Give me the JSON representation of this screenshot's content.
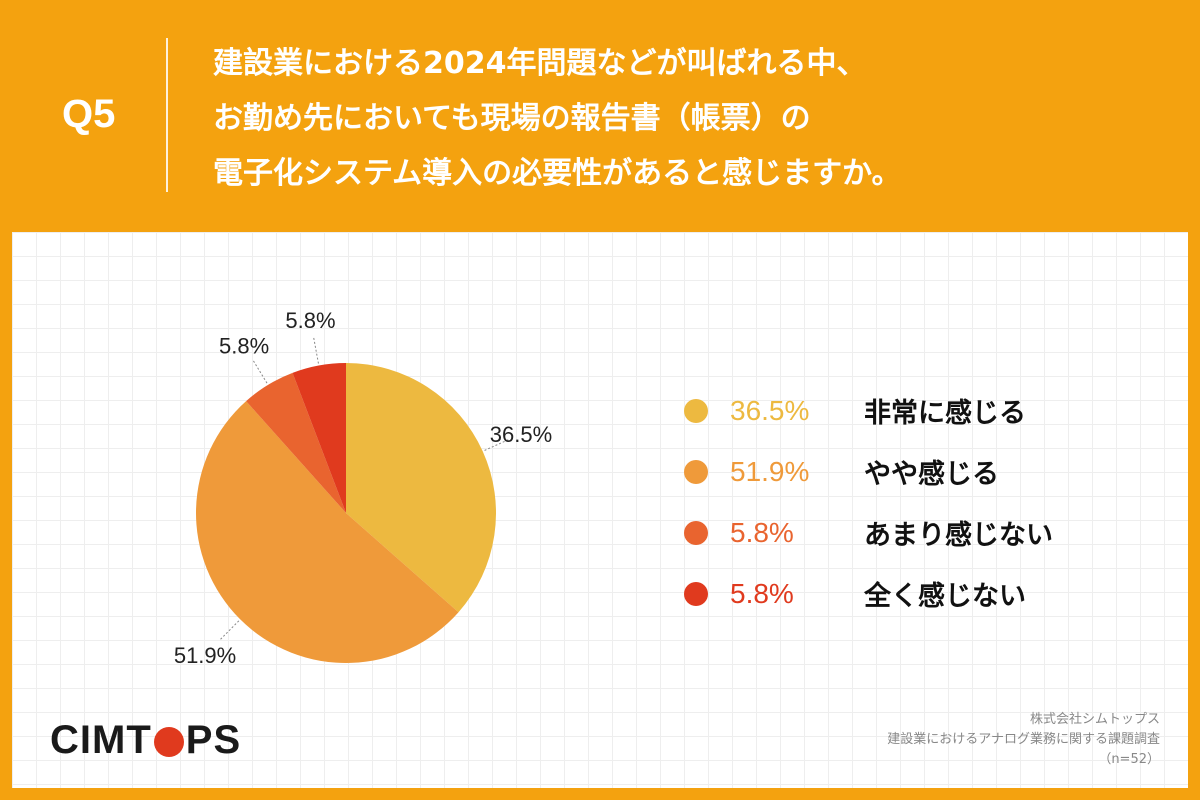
{
  "header": {
    "q_label": "Q5",
    "question_lines": [
      "建設業における2024年問題などが叫ばれる中、",
      "お勤め先においても現場の報告書（帳票）の",
      "電子化システム導入の必要性があると感じますか。"
    ]
  },
  "chart_data": {
    "type": "pie",
    "start_angle": "12 o'clock, clockwise",
    "slices": [
      {
        "label": "非常に感じる",
        "value": 36.5,
        "display": "36.5%",
        "color": "#EDB940"
      },
      {
        "label": "やや感じる",
        "value": 51.9,
        "display": "51.9%",
        "color": "#EF9A3A"
      },
      {
        "label": "あまり感じない",
        "value": 5.8,
        "display": "5.8%",
        "color": "#E9642F"
      },
      {
        "label": "全く感じない",
        "value": 5.8,
        "display": "5.8%",
        "color": "#E03A1E"
      }
    ],
    "legend_position": "right"
  },
  "branding": {
    "logo_before": "CIMT",
    "logo_after": "PS",
    "logo_color": "#E03A1E"
  },
  "source": {
    "company": "株式会社シムトップス",
    "survey": "建設業におけるアナログ業務に関する課題調査",
    "sample": "（n=52）"
  }
}
